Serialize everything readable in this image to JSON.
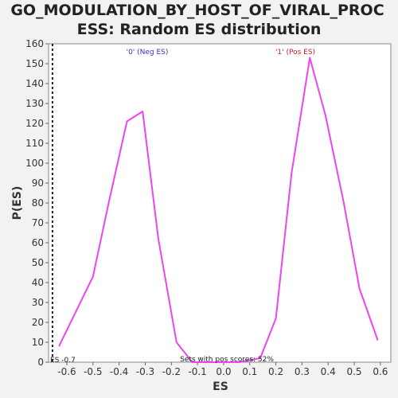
{
  "chart_data": {
    "type": "line",
    "title": "GO_MODULATION_BY_HOST_OF_VIRAL_PROCESS: Random ES distribution",
    "title_lines": [
      "GO_MODULATION_BY_HOST_OF_VIRAL_PROC",
      "ESS: Random ES distribution"
    ],
    "xlabel": "ES",
    "ylabel": "P(ES)",
    "xlim": [
      -0.67,
      0.64
    ],
    "ylim": [
      0,
      160
    ],
    "x_ticks": [
      -0.6,
      -0.5,
      -0.4,
      -0.3,
      -0.2,
      -0.1,
      0.0,
      0.1,
      0.2,
      0.3,
      0.4,
      0.5,
      0.6
    ],
    "x_tick_labels": [
      "-0.6",
      "-0.5",
      "-0.4",
      "-0.3",
      "-0.2",
      "-0.1",
      "0.0",
      "0.1",
      "0.2",
      "0.3",
      "0.4",
      "0.5",
      "0.6"
    ],
    "y_ticks": [
      0,
      10,
      20,
      30,
      40,
      50,
      60,
      70,
      80,
      90,
      100,
      110,
      120,
      130,
      140,
      150,
      160
    ],
    "grid": false,
    "series": [
      {
        "color": "#ee44ee",
        "x": [
          -0.63,
          -0.5,
          -0.44,
          -0.37,
          -0.31,
          -0.25,
          -0.18,
          -0.12,
          -0.06,
          0.0,
          0.06,
          0.14,
          0.2,
          0.26,
          0.33,
          0.39,
          0.46,
          0.52,
          0.59
        ],
        "y": [
          8,
          43,
          80,
          121,
          126,
          62,
          10,
          0,
          0,
          0,
          0,
          2,
          22,
          95,
          153,
          124,
          80,
          37,
          11
        ]
      }
    ],
    "annotations": {
      "neg_label": "'0' (Neg ES)",
      "neg_color": "#3333cc",
      "pos_label": "'1' (Pos ES)",
      "pos_color": "#cc2222",
      "es_marker_label": "ES -0.7",
      "es_marker_value": -0.655,
      "pos_scores_note": "Sets with pos scores: 52%"
    }
  }
}
